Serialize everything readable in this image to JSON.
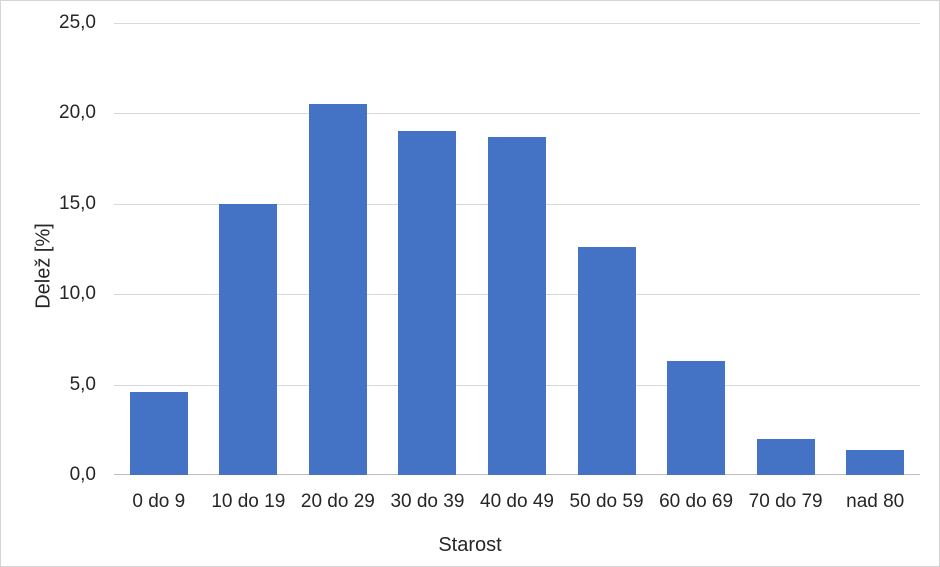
{
  "chart_data": {
    "type": "bar",
    "title": "",
    "xlabel": "Starost",
    "ylabel": "Delež [%]",
    "categories": [
      "0 do 9",
      "10 do 19",
      "20 do 29",
      "30 do 39",
      "40 do 49",
      "50 do 59",
      "60 do 69",
      "70 do 79",
      "nad 80"
    ],
    "values": [
      4.6,
      15.0,
      20.5,
      19.0,
      18.7,
      12.6,
      6.3,
      2.0,
      1.4
    ],
    "ylim": [
      0,
      25
    ],
    "ytick_step": 5,
    "ytick_labels": [
      "0,0",
      "5,0",
      "10,0",
      "15,0",
      "20,0",
      "25,0"
    ],
    "grid": true,
    "legend": "none",
    "colors": {
      "bar_fill": "#4472C4",
      "bar_edge": "#3E68B5",
      "gridline": "#d9d9d9",
      "axis_line": "#bfbfbf",
      "text": "#262626",
      "background": "#ffffff"
    }
  }
}
